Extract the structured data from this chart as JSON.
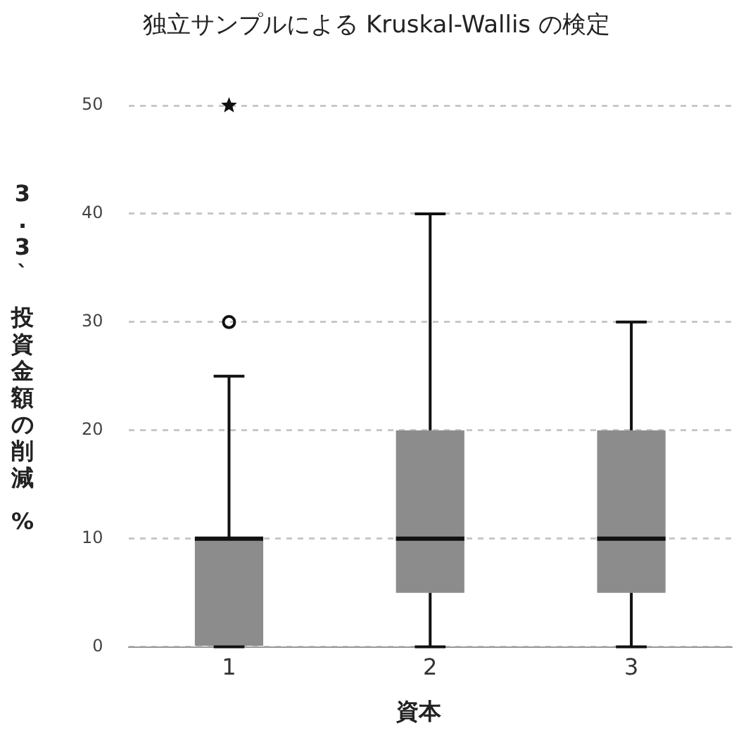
{
  "chart_data": {
    "type": "box",
    "title": "独立サンプルによる Kruskal-Wallis の検定",
    "xlabel": "資本",
    "ylabel": "3.3` 投資金額の削減 %",
    "categories": [
      "1",
      "2",
      "3"
    ],
    "color": "#8c8c8c",
    "boxes": [
      {
        "low": 0,
        "q1": 0,
        "median": 10,
        "q3": 10,
        "high": 25,
        "outliers": [
          30,
          50
        ]
      },
      {
        "low": 0,
        "q1": 5,
        "median": 10,
        "q3": 20,
        "high": 40
      },
      {
        "low": 0,
        "q1": 5,
        "median": 10,
        "q3": 20,
        "high": 30
      }
    ],
    "ylim": [
      0,
      50
    ],
    "yticks": [
      0,
      10,
      20,
      30,
      40,
      50
    ],
    "grid": "y",
    "legend": false
  }
}
